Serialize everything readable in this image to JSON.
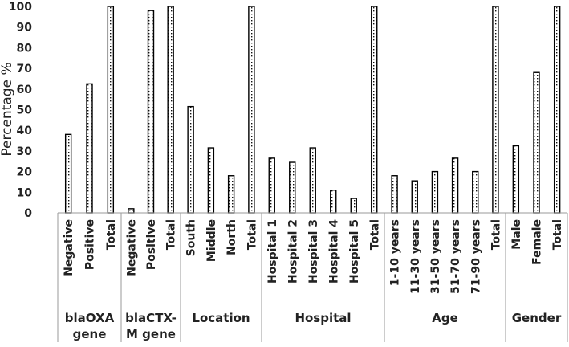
{
  "chart_data": {
    "type": "bar",
    "title": "",
    "xlabel": "",
    "ylabel": "Percentage %",
    "ylim": [
      0,
      100
    ],
    "yticks": [
      "0",
      "10",
      "20",
      "30",
      "40",
      "50",
      "60",
      "70",
      "80",
      "90",
      "100"
    ],
    "groups": [
      {
        "label": [
          "blaOXA",
          "gene"
        ],
        "categories": [
          "Negative",
          "Positive",
          "Total"
        ],
        "values": [
          38,
          62.5,
          100
        ]
      },
      {
        "label": [
          "blaCTX-",
          "M gene"
        ],
        "categories": [
          "Negative",
          "Positive",
          "Total"
        ],
        "values": [
          2,
          98,
          100
        ]
      },
      {
        "label": [
          "Location"
        ],
        "categories": [
          "South",
          "Middle",
          "North",
          "Total"
        ],
        "values": [
          51.5,
          31.5,
          18,
          100
        ]
      },
      {
        "label": [
          "Hospital"
        ],
        "categories": [
          "Hospital 1",
          "Hospital 2",
          "Hospital 3",
          "Hospital 4",
          "Hospital 5",
          "Total"
        ],
        "values": [
          26.5,
          24.5,
          31.5,
          11,
          7,
          100
        ]
      },
      {
        "label": [
          "Age"
        ],
        "categories": [
          "1-10 years",
          "11-30 years",
          "31-50 years",
          "51-70 years",
          "71-90 years",
          "Total"
        ],
        "values": [
          18,
          15.5,
          20,
          26.5,
          20,
          100
        ]
      },
      {
        "label": [
          "Gender"
        ],
        "categories": [
          "Male",
          "Female",
          "Total"
        ],
        "values": [
          32.5,
          68,
          100
        ]
      }
    ],
    "bar_fill": "dotted",
    "bar_color": "#000000",
    "grid": false
  }
}
